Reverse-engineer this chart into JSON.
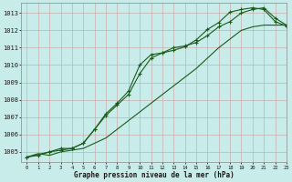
{
  "xlabel": "Graphe pression niveau de la mer (hPa)",
  "bg_color": "#c8ecea",
  "grid_color": "#b8b0b0",
  "line_color": "#1a5c1a",
  "xlim": [
    -0.5,
    23
  ],
  "ylim": [
    1004.4,
    1013.6
  ],
  "yticks": [
    1005,
    1006,
    1007,
    1008,
    1009,
    1010,
    1011,
    1012,
    1013
  ],
  "xticks": [
    0,
    1,
    2,
    3,
    4,
    5,
    6,
    7,
    8,
    9,
    10,
    11,
    12,
    13,
    14,
    15,
    16,
    17,
    18,
    19,
    20,
    21,
    22,
    23
  ],
  "line1_x": [
    0,
    1,
    2,
    3,
    4,
    5,
    6,
    7,
    8,
    9,
    10,
    11,
    12,
    13,
    14,
    15,
    16,
    17,
    18,
    19,
    20,
    21,
    22,
    23
  ],
  "line1_y": [
    1004.7,
    1004.9,
    1004.8,
    1005.0,
    1005.1,
    1005.2,
    1005.5,
    1005.8,
    1006.3,
    1006.8,
    1007.3,
    1007.8,
    1008.3,
    1008.8,
    1009.3,
    1009.8,
    1010.4,
    1011.0,
    1011.5,
    1012.0,
    1012.2,
    1012.3,
    1012.3,
    1012.3
  ],
  "line2_x": [
    0,
    1,
    2,
    3,
    4,
    5,
    6,
    7,
    8,
    9,
    10,
    11,
    12,
    13,
    14,
    15,
    16,
    17,
    18,
    19,
    20,
    21,
    22,
    23
  ],
  "line2_y": [
    1004.7,
    1004.8,
    1005.0,
    1005.1,
    1005.2,
    1005.5,
    1006.3,
    1007.2,
    1007.8,
    1008.5,
    1010.0,
    1010.6,
    1010.7,
    1010.85,
    1011.05,
    1011.45,
    1012.05,
    1012.45,
    1013.05,
    1013.2,
    1013.3,
    1013.2,
    1012.5,
    1012.25
  ],
  "line3_x": [
    0,
    2,
    3,
    4,
    5,
    6,
    7,
    8,
    9,
    10,
    11,
    12,
    13,
    14,
    15,
    16,
    17,
    18,
    19,
    20,
    21,
    22,
    23
  ],
  "line3_y": [
    1004.7,
    1005.0,
    1005.2,
    1005.2,
    1005.5,
    1006.3,
    1007.1,
    1007.7,
    1008.3,
    1009.5,
    1010.4,
    1010.7,
    1011.0,
    1011.1,
    1011.3,
    1011.7,
    1012.2,
    1012.5,
    1013.0,
    1013.2,
    1013.3,
    1012.7,
    1012.3
  ]
}
